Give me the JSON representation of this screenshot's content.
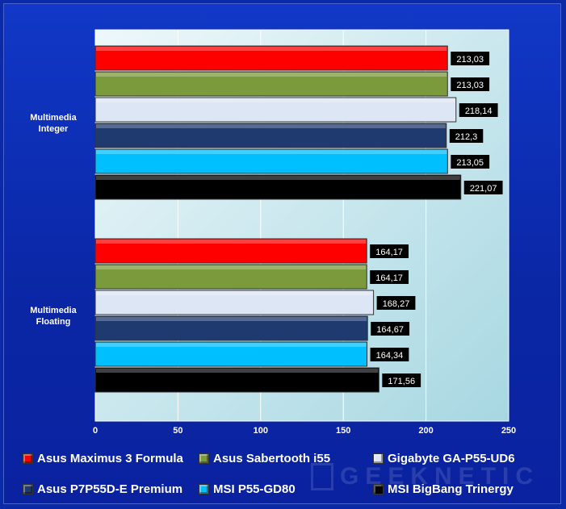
{
  "chart_data": {
    "type": "bar",
    "orientation": "horizontal",
    "categories": [
      "Multimedia\nInteger",
      "Multimedia\nFloating"
    ],
    "series": [
      {
        "name": "Asus Maximus 3 Formula",
        "color": "#ff0000",
        "values": [
          213.03,
          164.17
        ],
        "labels": [
          "213,03",
          "164,17"
        ]
      },
      {
        "name": "Asus Sabertooth i55",
        "color": "#7a9a3c",
        "values": [
          213.03,
          164.17
        ],
        "labels": [
          "213,03",
          "164,17"
        ]
      },
      {
        "name": "Gigabyte GA-P55-UD6",
        "color": "#dce6f5",
        "values": [
          218.14,
          168.27
        ],
        "labels": [
          "218,14",
          "168,27"
        ]
      },
      {
        "name": "Asus P7P55D-E Premium",
        "color": "#1f3a6e",
        "values": [
          212.3,
          164.67
        ],
        "labels": [
          "212,3",
          "164,67"
        ]
      },
      {
        "name": "MSI P55-GD80",
        "color": "#00bfff",
        "values": [
          213.05,
          164.34
        ],
        "labels": [
          "213,05",
          "164,34"
        ]
      },
      {
        "name": "MSI BigBang Trinergy",
        "color": "#000000",
        "values": [
          221.07,
          171.56
        ],
        "labels": [
          "221,07",
          "171,56"
        ]
      }
    ],
    "xlim": [
      0,
      250
    ],
    "xticks": [
      0,
      50,
      100,
      150,
      200,
      250
    ],
    "grid": true,
    "legend_position": "bottom"
  },
  "watermark": "GEEKNETIC",
  "colors": {
    "background": "#0b2aa8",
    "plot_area": "#c8e8ee"
  }
}
